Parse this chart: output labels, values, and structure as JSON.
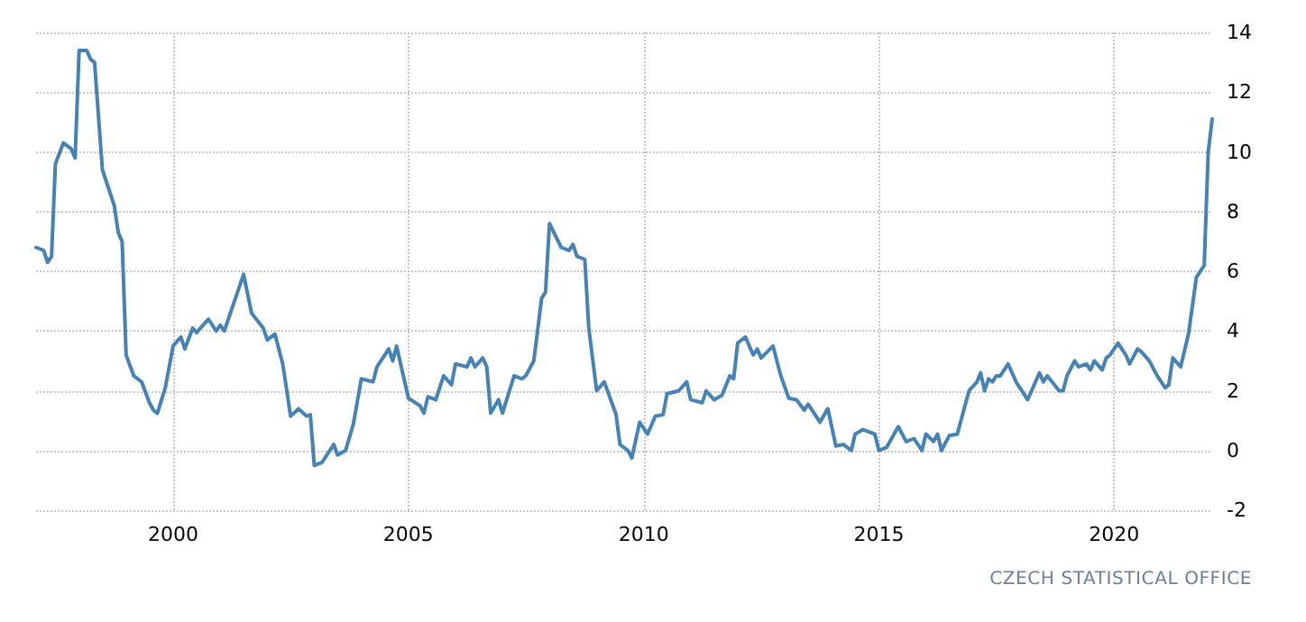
{
  "chart_data": {
    "type": "line",
    "annotations": [
      "CZECH STATISTICAL OFFICE"
    ],
    "x": [
      "1997-02",
      "1997-04",
      "1997-05",
      "1997-06",
      "1997-07",
      "1997-09",
      "1997-11",
      "1997-12",
      "1998-01",
      "1998-03",
      "1998-04",
      "1998-05",
      "1998-07",
      "1998-10",
      "1998-11",
      "1998-12",
      "1999-01",
      "1999-03",
      "1999-05",
      "1999-07",
      "1999-08",
      "1999-09",
      "1999-11",
      "2000-01",
      "2000-03",
      "2000-04",
      "2000-06",
      "2000-07",
      "2000-10",
      "2000-12",
      "2001-01",
      "2001-02",
      "2001-07",
      "2001-09",
      "2001-12",
      "2002-01",
      "2002-03",
      "2002-05",
      "2002-07",
      "2002-09",
      "2002-11",
      "2002-12",
      "2003-01",
      "2003-03",
      "2003-06",
      "2003-07",
      "2003-09",
      "2003-11",
      "2004-01",
      "2004-04",
      "2004-05",
      "2004-08",
      "2004-09",
      "2004-10",
      "2004-11",
      "2005-01",
      "2005-04",
      "2005-05",
      "2005-06",
      "2005-08",
      "2005-10",
      "2005-12",
      "2006-01",
      "2006-04",
      "2006-05",
      "2006-06",
      "2006-08",
      "2006-09",
      "2006-10",
      "2006-12",
      "2007-01",
      "2007-04",
      "2007-06",
      "2007-07",
      "2007-09",
      "2007-11",
      "2007-12",
      "2008-01",
      "2008-04",
      "2008-06",
      "2008-07",
      "2008-08",
      "2008-10",
      "2008-11",
      "2009-01",
      "2009-03",
      "2009-06",
      "2009-07",
      "2009-09",
      "2009-10",
      "2009-12",
      "2010-02",
      "2010-04",
      "2010-06",
      "2010-07",
      "2010-10",
      "2010-12",
      "2011-01",
      "2011-04",
      "2011-05",
      "2011-07",
      "2011-09",
      "2011-11",
      "2011-12",
      "2012-01",
      "2012-03",
      "2012-05",
      "2012-06",
      "2012-07",
      "2012-10",
      "2012-12",
      "2013-02",
      "2013-04",
      "2013-06",
      "2013-07",
      "2013-10",
      "2013-12",
      "2014-02",
      "2014-04",
      "2014-06",
      "2014-07",
      "2014-09",
      "2014-12",
      "2015-01",
      "2015-03",
      "2015-06",
      "2015-08",
      "2015-10",
      "2015-12",
      "2016-01",
      "2016-03",
      "2016-04",
      "2016-05",
      "2016-07",
      "2016-09",
      "2016-12",
      "2017-02",
      "2017-03",
      "2017-04",
      "2017-05",
      "2017-06",
      "2017-07",
      "2017-08",
      "2017-10",
      "2017-12",
      "2018-03",
      "2018-06",
      "2018-07",
      "2018-08",
      "2018-11",
      "2018-12",
      "2019-01",
      "2019-03",
      "2019-04",
      "2019-06",
      "2019-07",
      "2019-08",
      "2019-10",
      "2019-11",
      "2019-12",
      "2020-02",
      "2020-03",
      "2020-04",
      "2020-05",
      "2020-07",
      "2020-08",
      "2020-10",
      "2020-12",
      "2021-02",
      "2021-03",
      "2021-04",
      "2021-06",
      "2021-08",
      "2021-10",
      "2021-12",
      "2022-01",
      "2022-02"
    ],
    "series": [
      {
        "color": "#4682b4",
        "values": [
          6.8,
          6.7,
          6.3,
          6.5,
          9.6,
          10.3,
          10.1,
          9.8,
          13.4,
          13.4,
          13.1,
          13.0,
          9.4,
          8.2,
          7.3,
          7.0,
          3.2,
          2.5,
          2.3,
          1.6,
          1.35,
          1.25,
          2.1,
          3.5,
          3.8,
          3.4,
          4.1,
          3.95,
          4.4,
          4.0,
          4.2,
          4.0,
          5.9,
          4.6,
          4.1,
          3.7,
          3.9,
          2.9,
          1.15,
          1.4,
          1.15,
          1.2,
          -0.5,
          -0.4,
          0.2,
          -0.15,
          0.0,
          0.9,
          2.4,
          2.3,
          2.8,
          3.4,
          3.0,
          3.5,
          2.9,
          1.75,
          1.5,
          1.25,
          1.8,
          1.7,
          2.5,
          2.2,
          2.9,
          2.8,
          3.1,
          2.8,
          3.1,
          2.8,
          1.25,
          1.7,
          1.25,
          2.5,
          2.4,
          2.5,
          3.0,
          5.1,
          5.3,
          7.6,
          6.8,
          6.7,
          6.9,
          6.5,
          6.4,
          4.1,
          2.0,
          2.3,
          1.2,
          0.2,
          0.0,
          -0.25,
          0.95,
          0.55,
          1.15,
          1.2,
          1.9,
          2.0,
          2.3,
          1.7,
          1.6,
          2.0,
          1.7,
          1.85,
          2.5,
          2.4,
          3.6,
          3.8,
          3.2,
          3.4,
          3.1,
          3.5,
          2.5,
          1.75,
          1.7,
          1.35,
          1.55,
          0.95,
          1.4,
          0.15,
          0.2,
          0.0,
          0.55,
          0.7,
          0.55,
          0.0,
          0.1,
          0.8,
          0.3,
          0.4,
          0.0,
          0.55,
          0.3,
          0.55,
          0.0,
          0.5,
          0.55,
          2.0,
          2.3,
          2.6,
          2.0,
          2.4,
          2.3,
          2.5,
          2.5,
          2.9,
          2.3,
          1.7,
          2.6,
          2.3,
          2.5,
          2.0,
          2.0,
          2.5,
          3.0,
          2.8,
          2.9,
          2.7,
          3.0,
          2.7,
          3.1,
          3.2,
          3.6,
          3.4,
          3.2,
          2.9,
          3.4,
          3.3,
          3.0,
          2.5,
          2.1,
          2.2,
          3.1,
          2.8,
          3.9,
          5.8,
          6.2,
          10.0,
          11.1
        ]
      }
    ],
    "xlim": [
      "1997-02",
      "2022-02"
    ],
    "xticks": [
      "2000",
      "2005",
      "2010",
      "2015",
      "2020"
    ],
    "ylim": [
      -2,
      14
    ],
    "yticks": [
      -2,
      0,
      2,
      4,
      6,
      8,
      10,
      12,
      14
    ],
    "grid": true,
    "marker": "none",
    "line_style": "solid"
  }
}
